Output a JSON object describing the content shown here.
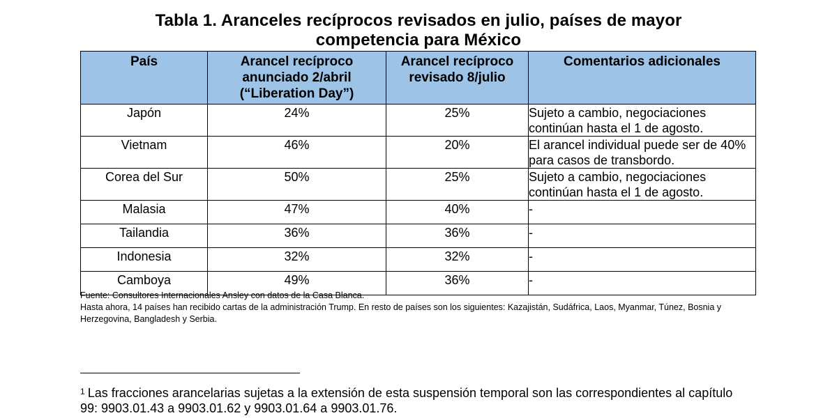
{
  "title": "Tabla 1. Aranceles recíprocos revisados en julio, países de mayor competencia para México",
  "table": {
    "headers": {
      "country": "País",
      "announced": "Arancel recíproco anunciado 2/abril (“Liberation Day”)",
      "revised": "Arancel recíproco revisado 8/julio",
      "comments": "Comentarios adicionales"
    },
    "rows": [
      {
        "country": "Japón",
        "announced": "24%",
        "revised": "25%",
        "comment": "Sujeto a cambio, negociaciones continúan hasta el 1 de agosto."
      },
      {
        "country": "Vietnam",
        "announced": "46%",
        "revised": "20%",
        "comment": "El arancel individual puede ser de 40% para casos de transbordo."
      },
      {
        "country": "Corea del Sur",
        "announced": "50%",
        "revised": "25%",
        "comment": "Sujeto a cambio, negociaciones continúan hasta el 1 de agosto."
      },
      {
        "country": "Malasia",
        "announced": "47%",
        "revised": "40%",
        "comment": "-"
      },
      {
        "country": "Tailandia",
        "announced": "36%",
        "revised": "36%",
        "comment": "-"
      },
      {
        "country": "Indonesia",
        "announced": "32%",
        "revised": "32%",
        "comment": "-"
      },
      {
        "country": "Camboya",
        "announced": "49%",
        "revised": "36%",
        "comment": "-"
      }
    ]
  },
  "notes": {
    "source": "Fuente: Consultores Internacionales Ansley con datos de la Casa Blanca.",
    "letters": "Hasta ahora, 14 países han recibido cartas de la administración Trump. En resto de países son los siguientes: Kazajistán, Sudáfrica, Laos, Myanmar, Túnez, Bosnia y Herzegovina, Bangladesh y Serbia."
  },
  "footnote": {
    "marker": "1",
    "text": "Las fracciones arancelarias sujetas a la extensión de esta suspensión temporal son las correspondientes al capítulo 99: 9903.01.43 a 9903.01.62 y 9903.01.64 a 9903.01.76."
  }
}
